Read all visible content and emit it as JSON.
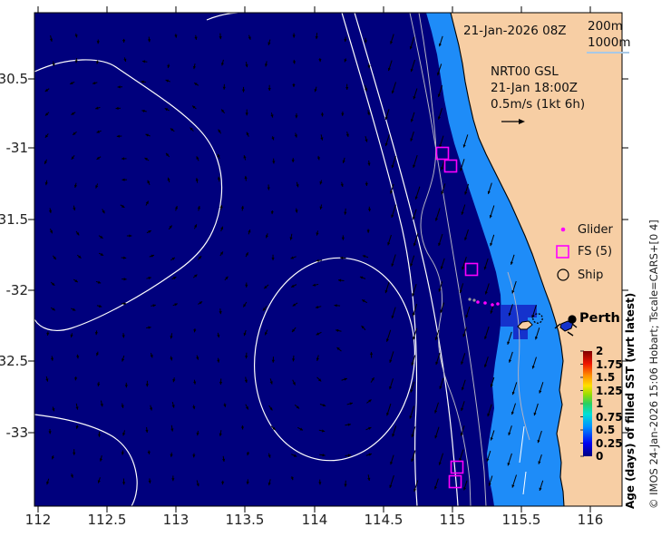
{
  "header": {
    "date_label": "21-Jan-2026 08Z"
  },
  "bathy_legend": {
    "line1": "200m",
    "line2": "1000m"
  },
  "velocity_note": {
    "line1": "NRT00 GSL",
    "line2": "21-Jan 18:00Z",
    "line3": "0.5m/s (1kt 6h)"
  },
  "marker_legend": {
    "glider": "Glider",
    "fs": "FS (5)",
    "ship": "Ship"
  },
  "city": {
    "name": "Perth"
  },
  "colorbar": {
    "title": "Age (days) of filled SST (wrt latest)",
    "labels": [
      "2",
      "1.75",
      "1.5",
      "1.25",
      "1",
      "0.75",
      "0.5",
      "0.25",
      "0"
    ]
  },
  "credit": "© IMOS 24-Jan-2026 15:06 Hobart; Tscale=CARS+[0 4]",
  "axes": {
    "x_ticks": [
      "112",
      "112.5",
      "113",
      "113.5",
      "114",
      "114.5",
      "115",
      "115.5",
      "116"
    ],
    "y_ticks": [
      "-30.5",
      "-31",
      "-31.5",
      "-32",
      "-32.5",
      "-33"
    ]
  },
  "colors": {
    "ocean_age0": "#00007d",
    "shelf_band": "#1e8cf8",
    "inner_patch": "#1532cc",
    "land": "#f7cea4",
    "marker_magenta": "#ff00ff",
    "contour_white": "#ffffff",
    "contour_gray": "#b2b2c4"
  },
  "map_markers": {
    "fs_squares": [
      [
        488,
        169
      ],
      [
        497,
        183
      ],
      [
        520,
        297
      ],
      [
        504,
        515
      ],
      [
        502,
        531
      ]
    ],
    "glider_dots_magenta": [
      [
        527,
        333
      ],
      [
        535,
        334
      ],
      [
        543,
        336
      ],
      [
        549,
        335
      ]
    ],
    "glider_dots_gray": [
      [
        518,
        330
      ],
      [
        523,
        331
      ]
    ],
    "ship": [
      593,
      351
    ],
    "perth_dot": [
      631,
      352
    ]
  },
  "chart_data": {
    "type": "map",
    "region": "Southwest Western Australia coast near Perth",
    "lon_range": [
      111.97,
      116.23
    ],
    "lat_range": [
      -33.52,
      -30.03
    ],
    "x_tick_values": [
      112,
      112.5,
      113,
      113.5,
      114,
      114.5,
      115,
      115.5,
      116
    ],
    "y_tick_values": [
      -30.5,
      -31,
      -31.5,
      -32,
      -32.5,
      -33
    ],
    "fill_field": {
      "name": "Age (days) of filled SST (wrt latest)",
      "range": [
        0,
        2
      ],
      "tick_values": [
        0,
        0.25,
        0.5,
        0.75,
        1,
        1.25,
        1.5,
        1.75,
        2
      ],
      "colormap": "jet",
      "filled_regions": [
        {
          "age_days": 0,
          "area": "open ocean (dark navy)"
        },
        {
          "age_days": 0.2,
          "area": "patch offshore of Perth (royal blue)"
        },
        {
          "age_days": 0.4,
          "area": "continental shelf band along coast (bright blue)"
        }
      ]
    },
    "bathymetry_contours_m": [
      200,
      1000
    ],
    "velocity_reference": "0.5m/s (1kt 6h)",
    "analysis_time": "21-Jan-2026 08Z",
    "velocity_field": "NRT00 GSL 21-Jan 18:00Z",
    "markers": {
      "fs_squares_lonlat": [
        [
          114.93,
          -31.03
        ],
        [
          114.99,
          -31.12
        ],
        [
          115.14,
          -31.85
        ],
        [
          115.04,
          -33.24
        ],
        [
          115.02,
          -33.35
        ]
      ],
      "glider_track_lonlat": [
        [
          115.13,
          -32.06
        ],
        [
          115.16,
          -32.07
        ],
        [
          115.21,
          -32.08
        ],
        [
          115.26,
          -32.1
        ],
        [
          115.3,
          -32.09
        ]
      ],
      "ship_lonlat": [
        115.62,
        -32.19
      ],
      "perth_lonlat": [
        115.87,
        -32.2
      ]
    }
  }
}
